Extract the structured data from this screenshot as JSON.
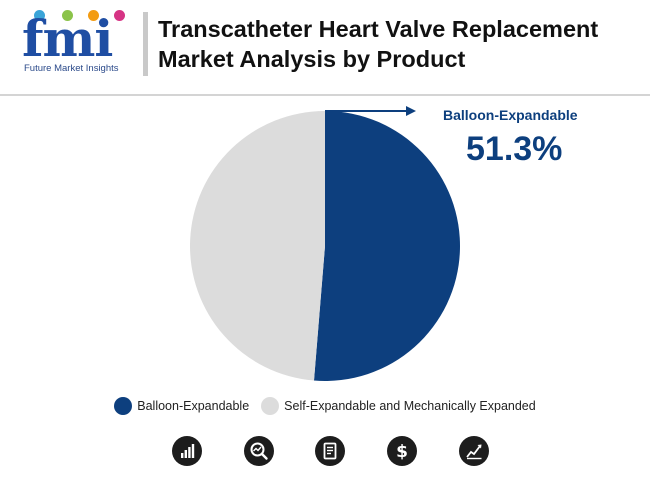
{
  "header": {
    "logo_text": "fmi",
    "logo_subtitle": "Future Market Insights",
    "title": "Transcatheter Heart Valve Replacement Market Analysis by Product",
    "logo_dot_colors": [
      "#3aa4d8",
      "#8bc34a",
      "#f39c12",
      "#d63384"
    ]
  },
  "chart_data": {
    "type": "pie",
    "categories": [
      "Balloon-Expandable",
      "Self-Expandable and Mechanically Expanded"
    ],
    "values": [
      51.3,
      48.7
    ],
    "colors": [
      "#0d3f7e",
      "#dcdcdc"
    ],
    "callout": {
      "label": "Balloon-Expandable",
      "value": "51.3%"
    },
    "legend_position": "bottom"
  },
  "footer_icons": [
    "bar-chart-icon",
    "search-analytics-icon",
    "report-document-icon",
    "dollar-icon",
    "trend-chart-icon"
  ]
}
